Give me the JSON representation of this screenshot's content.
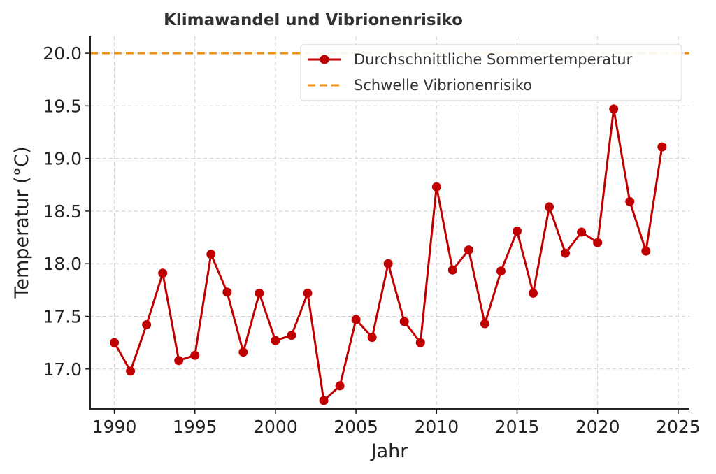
{
  "chart_data": {
    "type": "line",
    "title": "Klimawandel und Vibrionenrisiko",
    "xlabel": "Jahr",
    "ylabel": "Temperatur (°C)",
    "xlim": [
      1988.5,
      2025.7
    ],
    "ylim": [
      16.62,
      20.16
    ],
    "xticks": [
      1990,
      1995,
      2000,
      2005,
      2010,
      2015,
      2020,
      2025
    ],
    "yticks": [
      17.0,
      17.5,
      18.0,
      18.5,
      19.0,
      19.5,
      20.0
    ],
    "ytick_labels": [
      "17.0",
      "17.5",
      "18.0",
      "18.5",
      "19.0",
      "19.5",
      "20.0"
    ],
    "grid": true,
    "legend_position": "top-right",
    "series": [
      {
        "name": "Durchschnittliche Sommertemperatur",
        "color": "#c00000",
        "style": "line-with-markers",
        "x": [
          1990,
          1991,
          1992,
          1993,
          1994,
          1995,
          1996,
          1997,
          1998,
          1999,
          2000,
          2001,
          2002,
          2003,
          2004,
          2005,
          2006,
          2007,
          2008,
          2009,
          2010,
          2011,
          2012,
          2013,
          2014,
          2015,
          2016,
          2017,
          2018,
          2019,
          2020,
          2021,
          2022,
          2023,
          2024
        ],
        "values": [
          17.25,
          16.98,
          17.42,
          17.91,
          17.08,
          17.13,
          18.09,
          17.73,
          17.16,
          17.72,
          17.27,
          17.32,
          17.72,
          16.7,
          16.84,
          17.47,
          17.3,
          18.0,
          17.45,
          17.25,
          18.73,
          17.94,
          18.13,
          17.43,
          17.93,
          18.31,
          17.72,
          18.54,
          18.1,
          18.3,
          18.2,
          19.47,
          18.59,
          18.12,
          19.11
        ]
      },
      {
        "name": "Schwelle Vibrionenrisiko",
        "color": "#f0921e",
        "style": "dashed-horizontal",
        "value": 20.0
      }
    ]
  }
}
